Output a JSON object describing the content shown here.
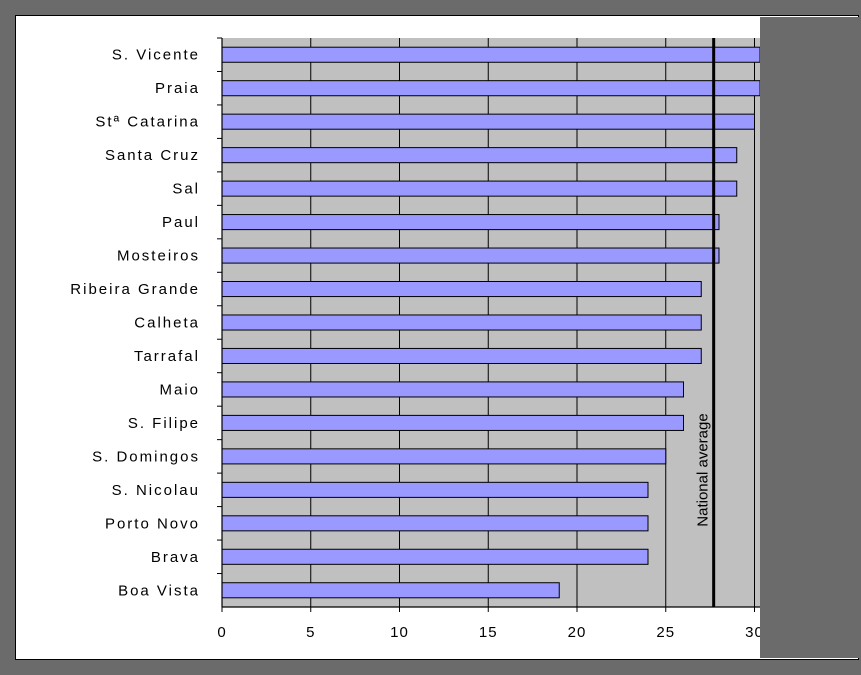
{
  "chart_data": {
    "type": "bar",
    "orientation": "horizontal",
    "title": "",
    "xlabel": "",
    "ylabel": "",
    "categories": [
      "S. Vicente",
      "Praia",
      "Stª Catarina",
      "Santa Cruz",
      "Sal",
      "Paul",
      "Mosteiros",
      "Ribeira Grande",
      "Calheta",
      "Tarrafal",
      "Maio",
      "S. Filipe",
      "S. Domingos",
      "S. Nicolau",
      "Porto Novo",
      "Brava",
      "Boa Vista"
    ],
    "values": [
      31,
      31,
      30,
      29,
      29,
      28,
      28,
      27,
      27,
      27,
      26,
      26,
      25,
      24,
      24,
      24,
      19
    ],
    "xlim": [
      0,
      30
    ],
    "xticks": [
      "0",
      "5",
      "10",
      "15",
      "20",
      "25",
      "30"
    ],
    "grid": true,
    "reference_line": {
      "label": "National average",
      "value": 27.7
    },
    "colors": {
      "bar_fill": "#9999ff",
      "bar_stroke": "#000000",
      "plot_background": "#c0c0c0",
      "reference_line": "#000000"
    }
  }
}
